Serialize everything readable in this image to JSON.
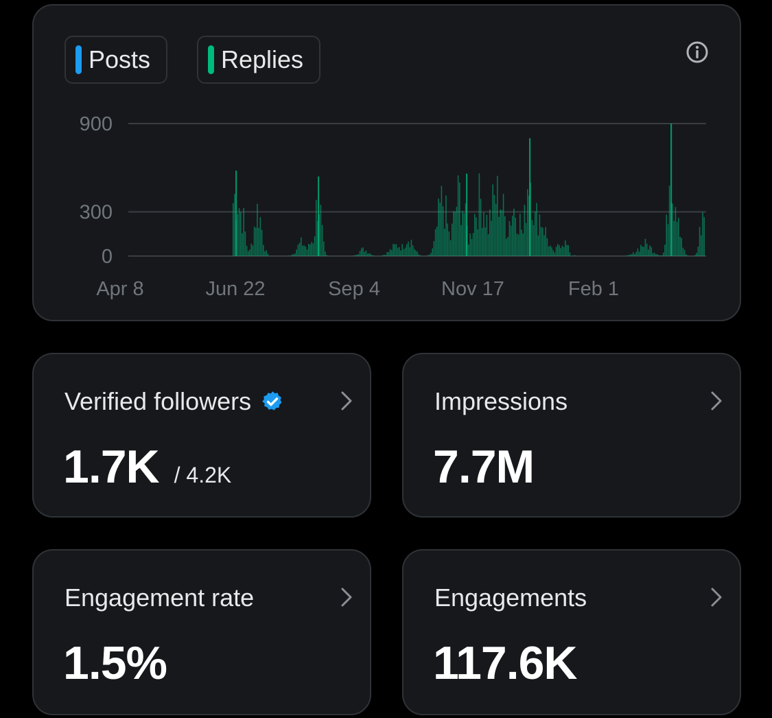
{
  "chart_card": {
    "toggles": [
      {
        "label": "Posts",
        "color": "#1d9bf0"
      },
      {
        "label": "Replies",
        "color": "#00ba7c"
      }
    ],
    "info_icon": "info-icon"
  },
  "chart_data": {
    "type": "bar",
    "series": [
      {
        "name": "Replies",
        "color": "#00ba7c"
      }
    ],
    "y_ticks": [
      "900",
      "300",
      "0"
    ],
    "x_ticks": [
      "Apr 8",
      "Jun 22",
      "Sep 4",
      "Nov 17",
      "Feb 1"
    ],
    "ylim": [
      0,
      900
    ],
    "grid": true,
    "peaks": [
      {
        "x": "Jun 22",
        "y": 580
      },
      {
        "x": "Jul 18",
        "y": 540
      },
      {
        "x": "Nov 17",
        "y": 560
      },
      {
        "x": "Dec 22",
        "y": 800
      },
      {
        "x": "Mar 20",
        "y": 900
      }
    ]
  },
  "stats": [
    {
      "label": "Verified followers",
      "value": "1.7K",
      "sub": "/ 4.2K",
      "verified": true
    },
    {
      "label": "Impressions",
      "value": "7.7M"
    },
    {
      "label": "Engagement rate",
      "value": "1.5%"
    },
    {
      "label": "Engagements",
      "value": "117.6K"
    }
  ],
  "colors": {
    "background": "#000000",
    "card": "#16181c",
    "border": "#2f3336",
    "posts_blue": "#1d9bf0",
    "replies_green": "#00ba7c",
    "verified_blue": "#1d9bf0"
  }
}
